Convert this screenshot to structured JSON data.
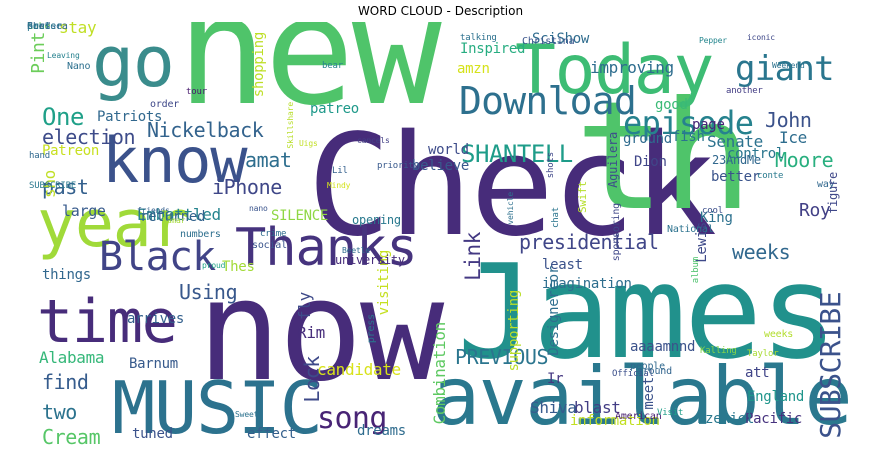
{
  "chart_data": {
    "type": "wordcloud",
    "title": "WORD CLOUD - Description",
    "words": [
      {
        "text": "new",
        "color": "#4fc46a"
      },
      {
        "text": "Check",
        "color": "#472c7a"
      },
      {
        "text": "James",
        "color": "#21918c"
      },
      {
        "text": "now",
        "color": "#472c7a"
      },
      {
        "text": "th",
        "color": "#4fc46a"
      },
      {
        "text": "available",
        "color": "#2a788e"
      },
      {
        "text": "MUSIC",
        "color": "#2c728e"
      },
      {
        "text": "Today",
        "color": "#3dbc74"
      },
      {
        "text": "know",
        "color": "#3b528b"
      },
      {
        "text": "go",
        "color": "#3a8c8c"
      },
      {
        "text": "year",
        "color": "#a0da39"
      },
      {
        "text": "time",
        "color": "#472c7a"
      },
      {
        "text": "Thanks",
        "color": "#46337e"
      },
      {
        "text": "Black",
        "color": "#414487"
      },
      {
        "text": "Download",
        "color": "#2d708e"
      },
      {
        "text": "episode",
        "color": "#26828e"
      },
      {
        "text": "giant",
        "color": "#2a768e"
      },
      {
        "text": "song",
        "color": "#482475"
      },
      {
        "text": "SUBSCRIBE",
        "color": "#3b528b"
      },
      {
        "text": "SHANTELL",
        "color": "#1e9c89"
      },
      {
        "text": "Nickelback",
        "color": "#33638d"
      },
      {
        "text": "presidential",
        "color": "#404688"
      },
      {
        "text": "One",
        "color": "#1fa088"
      },
      {
        "text": "PREVIOUS",
        "color": "#2b758e"
      },
      {
        "text": "Link",
        "color": "#443983"
      },
      {
        "text": "John",
        "color": "#3b528b"
      },
      {
        "text": "iPhone",
        "color": "#3f4788"
      },
      {
        "text": "election",
        "color": "#3e4c8a"
      },
      {
        "text": "two",
        "color": "#2c738e"
      },
      {
        "text": "find",
        "color": "#365c8d"
      },
      {
        "text": "weeks",
        "color": "#31688e"
      },
      {
        "text": "Lock",
        "color": "#3e4989"
      },
      {
        "text": "Cream",
        "color": "#56c667"
      },
      {
        "text": "Using",
        "color": "#38588c"
      },
      {
        "text": "amat",
        "color": "#2e6e8e"
      },
      {
        "text": "past",
        "color": "#34608d"
      },
      {
        "text": "Embattled",
        "color": "#25848e"
      },
      {
        "text": "Alabama",
        "color": "#35b779"
      },
      {
        "text": "candidate",
        "color": "#d8e219"
      },
      {
        "text": "Moore",
        "color": "#29af7f"
      },
      {
        "text": "Senate",
        "color": "#2c728e"
      },
      {
        "text": "Combination",
        "color": "#5ec962"
      },
      {
        "text": "Pint",
        "color": "#6ccd5a"
      },
      {
        "text": "Patriots",
        "color": "#31688e"
      },
      {
        "text": "Patreon",
        "color": "#c8e020"
      },
      {
        "text": "sho",
        "color": "#c0df25"
      },
      {
        "text": "large",
        "color": "#375a8c"
      },
      {
        "text": "Roy",
        "color": "#424086"
      },
      {
        "text": "Ice",
        "color": "#2e6d8e"
      },
      {
        "text": "amzn",
        "color": "#d5e21a"
      },
      {
        "text": "improving",
        "color": "#2e6d8e"
      },
      {
        "text": "Inspired",
        "color": "#27ad81"
      },
      {
        "text": "SciShow",
        "color": "#2f6c8e"
      },
      {
        "text": "Dion",
        "color": "#404688"
      },
      {
        "text": "page",
        "color": "#482576"
      },
      {
        "text": "ground",
        "color": "#2f6b8e"
      },
      {
        "text": "control",
        "color": "#2a768e"
      },
      {
        "text": "returned",
        "color": "#33638d"
      },
      {
        "text": "SILENCE",
        "color": "#8fd744"
      },
      {
        "text": "believe",
        "color": "#38588c"
      },
      {
        "text": "world",
        "color": "#3e4c8a"
      },
      {
        "text": "23AndMe",
        "color": "#31688e"
      },
      {
        "text": "better",
        "color": "#3a538b"
      },
      {
        "text": "King",
        "color": "#2d718e"
      },
      {
        "text": "Lewis",
        "color": "#3e4989"
      },
      {
        "text": "least",
        "color": "#3b528b"
      },
      {
        "text": "imagination",
        "color": "#2e6e8e"
      },
      {
        "text": "aaaamnnd",
        "color": "#3b528b"
      },
      {
        "text": "England",
        "color": "#1f958b"
      },
      {
        "text": "Pacific",
        "color": "#46327e"
      },
      {
        "text": "Ezekiel",
        "color": "#2a788e"
      },
      {
        "text": "blast",
        "color": "#433e85"
      },
      {
        "text": "Shiva",
        "color": "#375b8d"
      },
      {
        "text": "information",
        "color": "#c2df23"
      },
      {
        "text": "dreams",
        "color": "#2f6c8e"
      },
      {
        "text": "effect",
        "color": "#34608d"
      },
      {
        "text": "tuned",
        "color": "#3b528b"
      },
      {
        "text": "Barnum",
        "color": "#375a8c"
      },
      {
        "text": "Rim",
        "color": "#472d7b"
      },
      {
        "text": "arrives",
        "color": "#34608d"
      },
      {
        "text": "things",
        "color": "#31678e"
      },
      {
        "text": "supporting",
        "color": "#bade28"
      },
      {
        "text": "visiting",
        "color": "#c5e021"
      },
      {
        "text": "fly",
        "color": "#3e4a89"
      },
      {
        "text": "Thes",
        "color": "#a2da37"
      },
      {
        "text": "meet",
        "color": "#3b528b"
      },
      {
        "text": "att",
        "color": "#404588"
      },
      {
        "text": "Designercor",
        "color": "#2e6e8e"
      },
      {
        "text": "Ir",
        "color": "#453781"
      },
      {
        "text": "good",
        "color": "#3aba76"
      },
      {
        "text": "fish",
        "color": "#2b748e"
      },
      {
        "text": "stay",
        "color": "#c0df25"
      },
      {
        "text": "patreo",
        "color": "#1f998a"
      },
      {
        "text": "shopping",
        "color": "#bddf26"
      },
      {
        "text": "order",
        "color": "#3f4889"
      },
      {
        "text": "tour",
        "color": "#481b6d"
      },
      {
        "text": "another",
        "color": "#433d84"
      },
      {
        "text": "way",
        "color": "#31688e"
      },
      {
        "text": "figure",
        "color": "#3f4889"
      },
      {
        "text": "Kalling",
        "color": "#85d54a"
      },
      {
        "text": "people",
        "color": "#30698e"
      },
      {
        "text": "social",
        "color": "#3a548c"
      },
      {
        "text": "university",
        "color": "#472d7b"
      },
      {
        "text": "opening",
        "color": "#29798e"
      },
      {
        "text": "National",
        "color": "#2c728e"
      },
      {
        "text": "Swift",
        "color": "#b5de2b"
      },
      {
        "text": "numbers",
        "color": "#2e6f8e"
      },
      {
        "text": "Christina",
        "color": "#3a548c"
      },
      {
        "text": "Official",
        "color": "#3c508b"
      },
      {
        "text": "around",
        "color": "#32658e"
      },
      {
        "text": "American",
        "color": "#481f70"
      },
      {
        "text": "weeks",
        "color": "#b2dd2d"
      },
      {
        "text": "press",
        "color": "#2a778e"
      },
      {
        "text": "cool",
        "color": "#3c4f8a"
      },
      {
        "text": "conte",
        "color": "#297a8e"
      },
      {
        "text": "talking",
        "color": "#2c718e"
      },
      {
        "text": "Nano",
        "color": "#2d708e"
      },
      {
        "text": "Visit",
        "color": "#1f9e89"
      },
      {
        "text": "chat",
        "color": "#2b758e"
      },
      {
        "text": "Aguilera",
        "color": "#3d4e8a"
      },
      {
        "text": "sponsoring",
        "color": "#3f4788"
      },
      {
        "text": "SUBSCRIBE",
        "color": "#2a788e"
      },
      {
        "text": "Taylor",
        "color": "#a8db34"
      },
      {
        "text": "hand",
        "color": "#30698e"
      },
      {
        "text": "Lil",
        "color": "#34608d"
      },
      {
        "text": "Leaving",
        "color": "#26818e"
      },
      {
        "text": "shots",
        "color": "#3f4788"
      },
      {
        "text": "crime",
        "color": "#2f6c8e"
      },
      {
        "text": "Mindy",
        "color": "#d2e21b"
      },
      {
        "text": "Beetle",
        "color": "#2f6c8e"
      },
      {
        "text": "Sweet",
        "color": "#2c728e"
      },
      {
        "text": "Skillshare",
        "color": "#b8de29"
      },
      {
        "text": "vehicle",
        "color": "#2d708e"
      },
      {
        "text": "nano",
        "color": "#3a548c"
      },
      {
        "text": "Uigs",
        "color": "#c2df23"
      },
      {
        "text": "album",
        "color": "#4cc26c"
      },
      {
        "text": "Lamar",
        "color": "#a5db36"
      },
      {
        "text": "friends",
        "color": "#35608d"
      },
      {
        "text": "bear",
        "color": "#25838e"
      },
      {
        "text": "proud",
        "color": "#20a486"
      },
      {
        "text": "Pepper",
        "color": "#24868e"
      },
      {
        "text": "Weekend",
        "color": "#2c728e"
      },
      {
        "text": "priority",
        "color": "#38598c"
      },
      {
        "text": "iconic",
        "color": "#3f4889"
      },
      {
        "text": "cancels",
        "color": "#424086"
      },
      {
        "text": "Chelsea",
        "color": "#31668e"
      },
      {
        "text": "hard",
        "color": "#3d4d8a"
      },
      {
        "text": "Lobe",
        "color": "#6ccd5a"
      },
      {
        "text": "prefer",
        "color": "#2b758e"
      },
      {
        "text": "Boss",
        "color": "#2e6e8e"
      },
      {
        "text": "sent",
        "color": "#2a768e"
      }
    ]
  }
}
